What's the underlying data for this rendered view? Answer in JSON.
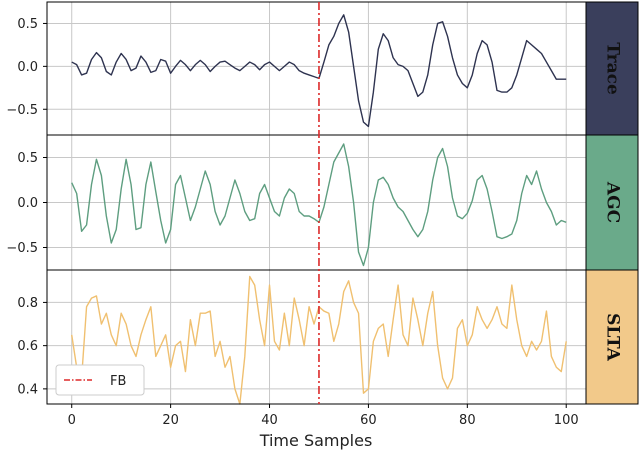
{
  "xlabel": "Time Samples",
  "legend": {
    "label": "FB",
    "placement": "lower-left"
  },
  "colors": {
    "fb_line": "#dd2a2a",
    "grid": "#c8c8c8",
    "frame": "#000000"
  },
  "chart_data": [
    {
      "type": "line",
      "tag": "Trace",
      "tag_color": "#3a3f5c",
      "line_color": "#2e3350",
      "ylim": [
        -0.8,
        0.75
      ],
      "yticks": [
        0.5,
        0.0,
        -0.5
      ],
      "ytick_labels": [
        "0.5",
        "0.0",
        "−0.5"
      ],
      "xlim": [
        -5,
        104
      ],
      "xticks": [
        0,
        20,
        40,
        60,
        80,
        100
      ],
      "grid": true,
      "fb_x": 50,
      "x": [
        0,
        1,
        2,
        3,
        4,
        5,
        6,
        7,
        8,
        9,
        10,
        11,
        12,
        13,
        14,
        15,
        16,
        17,
        18,
        19,
        20,
        21,
        22,
        23,
        24,
        25,
        26,
        27,
        28,
        29,
        30,
        31,
        32,
        33,
        34,
        35,
        36,
        37,
        38,
        39,
        40,
        41,
        42,
        43,
        44,
        45,
        46,
        47,
        48,
        49,
        50,
        51,
        52,
        53,
        54,
        55,
        56,
        57,
        58,
        59,
        60,
        61,
        62,
        63,
        64,
        65,
        66,
        67,
        68,
        69,
        70,
        71,
        72,
        73,
        74,
        75,
        76,
        77,
        78,
        79,
        80,
        81,
        82,
        83,
        84,
        85,
        86,
        87,
        88,
        89,
        90,
        91,
        92,
        93,
        94,
        95,
        96,
        97,
        98,
        99,
        100
      ],
      "values": [
        0.05,
        0.02,
        -0.1,
        -0.08,
        0.08,
        0.16,
        0.1,
        -0.06,
        -0.1,
        0.05,
        0.15,
        0.08,
        -0.05,
        -0.02,
        0.12,
        0.05,
        -0.07,
        -0.05,
        0.08,
        0.06,
        -0.08,
        0.0,
        0.07,
        0.02,
        -0.05,
        0.02,
        0.07,
        0.02,
        -0.06,
        0.0,
        0.05,
        0.06,
        0.02,
        -0.02,
        -0.05,
        0.0,
        0.05,
        0.02,
        -0.04,
        0.02,
        0.05,
        0.0,
        -0.05,
        0.0,
        0.05,
        0.02,
        -0.05,
        -0.08,
        -0.1,
        -0.12,
        -0.14,
        0.05,
        0.25,
        0.35,
        0.5,
        0.6,
        0.4,
        0.0,
        -0.4,
        -0.65,
        -0.7,
        -0.3,
        0.2,
        0.38,
        0.3,
        0.1,
        0.02,
        0.0,
        -0.05,
        -0.2,
        -0.35,
        -0.3,
        -0.1,
        0.25,
        0.5,
        0.52,
        0.35,
        0.1,
        -0.1,
        -0.2,
        -0.25,
        -0.1,
        0.15,
        0.3,
        0.25,
        0.05,
        -0.28,
        -0.3,
        -0.3,
        -0.25,
        -0.1,
        0.1,
        0.3,
        0.25,
        0.2,
        0.15,
        0.05,
        -0.05,
        -0.15,
        -0.15,
        -0.15
      ]
    },
    {
      "type": "line",
      "tag": "AGC",
      "tag_color": "#6aaa8a",
      "line_color": "#5e9e80",
      "ylim": [
        -0.75,
        0.75
      ],
      "yticks": [
        0.5,
        0.0,
        -0.5
      ],
      "ytick_labels": [
        "0.5",
        "0.0",
        "−0.5"
      ],
      "xlim": [
        -5,
        104
      ],
      "xticks": [
        0,
        20,
        40,
        60,
        80,
        100
      ],
      "grid": true,
      "fb_x": 50,
      "x": [
        0,
        1,
        2,
        3,
        4,
        5,
        6,
        7,
        8,
        9,
        10,
        11,
        12,
        13,
        14,
        15,
        16,
        17,
        18,
        19,
        20,
        21,
        22,
        23,
        24,
        25,
        26,
        27,
        28,
        29,
        30,
        31,
        32,
        33,
        34,
        35,
        36,
        37,
        38,
        39,
        40,
        41,
        42,
        43,
        44,
        45,
        46,
        47,
        48,
        49,
        50,
        51,
        52,
        53,
        54,
        55,
        56,
        57,
        58,
        59,
        60,
        61,
        62,
        63,
        64,
        65,
        66,
        67,
        68,
        69,
        70,
        71,
        72,
        73,
        74,
        75,
        76,
        77,
        78,
        79,
        80,
        81,
        82,
        83,
        84,
        85,
        86,
        87,
        88,
        89,
        90,
        91,
        92,
        93,
        94,
        95,
        96,
        97,
        98,
        99,
        100
      ],
      "values": [
        0.22,
        0.1,
        -0.32,
        -0.25,
        0.2,
        0.48,
        0.3,
        -0.15,
        -0.45,
        -0.3,
        0.15,
        0.48,
        0.2,
        -0.3,
        -0.28,
        0.2,
        0.45,
        0.12,
        -0.2,
        -0.45,
        -0.3,
        0.2,
        0.3,
        0.05,
        -0.2,
        -0.05,
        0.15,
        0.35,
        0.2,
        -0.1,
        -0.25,
        -0.15,
        0.05,
        0.25,
        0.1,
        -0.1,
        -0.2,
        -0.18,
        0.1,
        0.2,
        0.05,
        -0.1,
        -0.15,
        0.05,
        0.15,
        0.1,
        -0.1,
        -0.15,
        -0.15,
        -0.18,
        -0.22,
        -0.05,
        0.2,
        0.45,
        0.55,
        0.65,
        0.4,
        0.0,
        -0.55,
        -0.7,
        -0.5,
        0.0,
        0.25,
        0.28,
        0.2,
        0.05,
        -0.05,
        -0.1,
        -0.2,
        -0.3,
        -0.38,
        -0.3,
        -0.1,
        0.25,
        0.5,
        0.6,
        0.4,
        0.05,
        -0.15,
        -0.18,
        -0.12,
        0.02,
        0.25,
        0.3,
        0.15,
        -0.1,
        -0.38,
        -0.4,
        -0.38,
        -0.35,
        -0.2,
        0.1,
        0.3,
        0.2,
        0.35,
        0.15,
        0.0,
        -0.1,
        -0.25,
        -0.2,
        -0.22
      ]
    },
    {
      "type": "line",
      "tag": "SLTA",
      "tag_color": "#f2c98a",
      "line_color": "#f0c070",
      "ylim": [
        0.33,
        0.95
      ],
      "yticks": [
        0.8,
        0.6,
        0.4
      ],
      "ytick_labels": [
        "0.8",
        "0.6",
        "0.4"
      ],
      "xlim": [
        -5,
        104
      ],
      "xticks": [
        0,
        20,
        40,
        60,
        80,
        100
      ],
      "grid": true,
      "fb_x": 50,
      "x": [
        0,
        1,
        2,
        3,
        4,
        5,
        6,
        7,
        8,
        9,
        10,
        11,
        12,
        13,
        14,
        15,
        16,
        17,
        18,
        19,
        20,
        21,
        22,
        23,
        24,
        25,
        26,
        27,
        28,
        29,
        30,
        31,
        32,
        33,
        34,
        35,
        36,
        37,
        38,
        39,
        40,
        41,
        42,
        43,
        44,
        45,
        46,
        47,
        48,
        49,
        50,
        51,
        52,
        53,
        54,
        55,
        56,
        57,
        58,
        59,
        60,
        61,
        62,
        63,
        64,
        65,
        66,
        67,
        68,
        69,
        70,
        71,
        72,
        73,
        74,
        75,
        76,
        77,
        78,
        79,
        80,
        81,
        82,
        83,
        84,
        85,
        86,
        87,
        88,
        89,
        90,
        91,
        92,
        93,
        94,
        95,
        96,
        97,
        98,
        99,
        100
      ],
      "values": [
        0.65,
        0.5,
        0.45,
        0.78,
        0.82,
        0.83,
        0.7,
        0.75,
        0.65,
        0.6,
        0.75,
        0.7,
        0.6,
        0.55,
        0.65,
        0.72,
        0.78,
        0.55,
        0.6,
        0.65,
        0.5,
        0.6,
        0.62,
        0.48,
        0.72,
        0.6,
        0.75,
        0.75,
        0.76,
        0.55,
        0.62,
        0.5,
        0.55,
        0.4,
        0.33,
        0.55,
        0.92,
        0.88,
        0.72,
        0.6,
        0.88,
        0.62,
        0.58,
        0.75,
        0.6,
        0.82,
        0.72,
        0.6,
        0.78,
        0.7,
        0.78,
        0.76,
        0.75,
        0.62,
        0.7,
        0.85,
        0.9,
        0.8,
        0.75,
        0.38,
        0.4,
        0.62,
        0.68,
        0.7,
        0.55,
        0.72,
        0.88,
        0.65,
        0.6,
        0.82,
        0.72,
        0.6,
        0.75,
        0.85,
        0.6,
        0.45,
        0.4,
        0.45,
        0.68,
        0.72,
        0.6,
        0.65,
        0.78,
        0.72,
        0.68,
        0.72,
        0.78,
        0.7,
        0.68,
        0.88,
        0.72,
        0.6,
        0.55,
        0.62,
        0.58,
        0.62,
        0.76,
        0.55,
        0.5,
        0.48,
        0.62
      ]
    }
  ]
}
